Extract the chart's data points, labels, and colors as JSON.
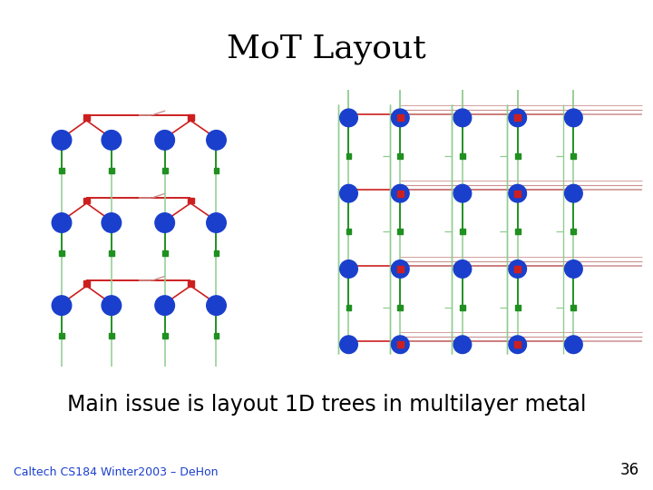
{
  "title": "MoT Layout",
  "subtitle": "Main issue is layout 1D trees in multilayer metal",
  "footer": "Caltech CS184 Winter2003 – DeHon",
  "slide_number": "36",
  "bg_color": "#ffffff",
  "title_fontsize": 26,
  "subtitle_fontsize": 17,
  "footer_fontsize": 9,
  "blue_color": "#1a3fcc",
  "red_color": "#cc2020",
  "green_color": "#209020",
  "light_red": "#cc9090",
  "light_green": "#90cc90"
}
